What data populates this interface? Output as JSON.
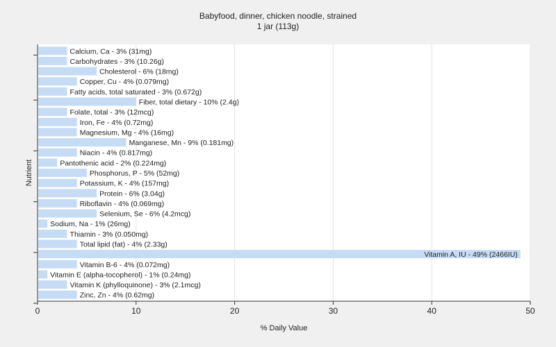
{
  "chart_data": {
    "type": "bar",
    "orientation": "horizontal",
    "title": "Babyfood, dinner, chicken noodle, strained",
    "subtitle": "1 jar (113g)",
    "xlabel": "% Daily Value",
    "ylabel": "Nutrient",
    "xlim": [
      0,
      50
    ],
    "xticks": [
      0,
      10,
      20,
      30,
      40,
      50
    ],
    "grid": true,
    "bar_color": "#c6dcf5",
    "categories": [
      "Calcium, Ca",
      "Carbohydrates",
      "Cholesterol",
      "Copper, Cu",
      "Fatty acids, total saturated",
      "Fiber, total dietary",
      "Folate, total",
      "Iron, Fe",
      "Magnesium, Mg",
      "Manganese, Mn",
      "Niacin",
      "Pantothenic acid",
      "Phosphorus, P",
      "Potassium, K",
      "Protein",
      "Riboflavin",
      "Selenium, Se",
      "Sodium, Na",
      "Thiamin",
      "Total lipid (fat)",
      "Vitamin A, IU",
      "Vitamin B-6",
      "Vitamin E (alpha-tocopherol)",
      "Vitamin K (phylloquinone)",
      "Zinc, Zn"
    ],
    "values": [
      3,
      3,
      6,
      4,
      3,
      10,
      3,
      4,
      4,
      9,
      4,
      2,
      5,
      4,
      6,
      4,
      6,
      1,
      3,
      4,
      49,
      4,
      1,
      3,
      4
    ],
    "labels": [
      "Calcium, Ca - 3% (31mg)",
      "Carbohydrates - 3% (10.26g)",
      "Cholesterol - 6% (18mg)",
      "Copper, Cu - 4% (0.079mg)",
      "Fatty acids, total saturated - 3% (0.672g)",
      "Fiber, total dietary - 10% (2.4g)",
      "Folate, total - 3% (12mcg)",
      "Iron, Fe - 4% (0.72mg)",
      "Magnesium, Mg - 4% (16mg)",
      "Manganese, Mn - 9% (0.181mg)",
      "Niacin - 4% (0.817mg)",
      "Pantothenic acid - 2% (0.224mg)",
      "Phosphorus, P - 5% (52mg)",
      "Potassium, K - 4% (157mg)",
      "Protein - 6% (3.04g)",
      "Riboflavin - 4% (0.069mg)",
      "Selenium, Se - 6% (4.2mcg)",
      "Sodium, Na - 1% (26mg)",
      "Thiamin - 3% (0.050mg)",
      "Total lipid (fat) - 4% (2.33g)",
      "Vitamin A, IU - 49% (2466IU)",
      "Vitamin B-6 - 4% (0.072mg)",
      "Vitamin E (alpha-tocopherol) - 1% (0.24mg)",
      "Vitamin K (phylloquinone) - 3% (2.1mcg)",
      "Zinc, Zn - 4% (0.62mg)"
    ]
  }
}
